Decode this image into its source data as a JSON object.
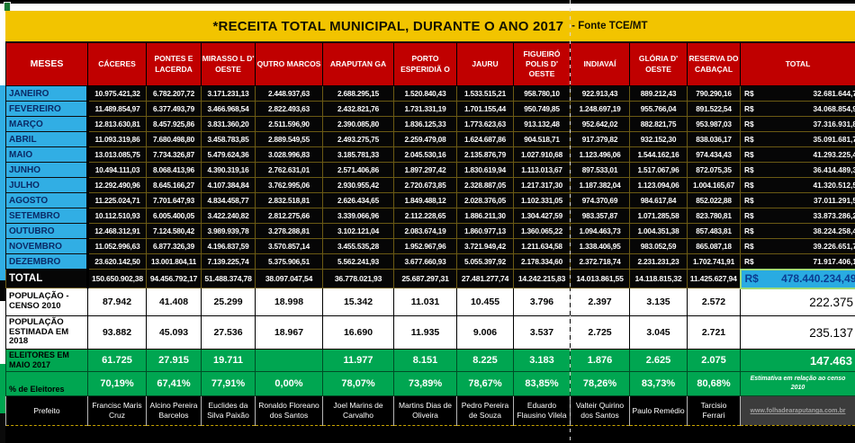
{
  "title": {
    "main": "*RECEITA TOTAL MUNICIPAL, DURANTE O ANO 2017",
    "source": "- Fonte TCE/MT"
  },
  "currency_prefix": "R$",
  "columns": [
    "MESES",
    "CÁCERES",
    "PONTES E LACERDA",
    "MIRASSO L D' OESTE",
    "QUTRO MARCOS",
    "ARAPUTAN GA",
    "PORTO ESPERIDIÃ O",
    "JAURU",
    "FIGUEIRÓ POLIS D' OESTE",
    "INDIAVAÍ",
    "GLÓRIA D' OESTE",
    "RESERVA DO CABAÇAL",
    "TOTAL"
  ],
  "month_rows": [
    {
      "label": "JANEIRO",
      "values": [
        "10.975.421,32",
        "6.782.207,72",
        "3.171.231,13",
        "2.448.937,63",
        "2.688.295,15",
        "1.520.840,43",
        "1.533.515,21",
        "958.780,10",
        "922.913,43",
        "889.212,43",
        "790.290,16"
      ],
      "total": "32.681.644,7"
    },
    {
      "label": "FEVEREIRO",
      "values": [
        "11.489.854,97",
        "6.377.493,79",
        "3.466.968,54",
        "2.822.493,63",
        "2.432.821,76",
        "1.731.331,19",
        "1.701.155,44",
        "950.749,85",
        "1.248.697,19",
        "955.766,04",
        "891.522,54"
      ],
      "total": "34.068.854,9"
    },
    {
      "label": "MARÇO",
      "values": [
        "12.813.630,81",
        "8.457.925,86",
        "3.831.360,20",
        "2.511.596,90",
        "2.390.085,80",
        "1.836.125,33",
        "1.773.623,63",
        "913.132,48",
        "952.642,02",
        "882.821,75",
        "953.987,03"
      ],
      "total": "37.316.931,8"
    },
    {
      "label": "ABRIL",
      "values": [
        "11.093.319,86",
        "7.680.498,80",
        "3.458.783,85",
        "2.889.549,55",
        "2.493.275,75",
        "2.259.479,08",
        "1.624.687,86",
        "904.518,71",
        "917.379,82",
        "932.152,30",
        "838.036,17"
      ],
      "total": "35.091.681,7"
    },
    {
      "label": "MAIO",
      "values": [
        "13.013.085,75",
        "7.734.326,87",
        "5.479.624,36",
        "3.028.996,83",
        "3.185.781,33",
        "2.045.530,16",
        "2.135.876,79",
        "1.027.910,68",
        "1.123.496,06",
        "1.544.162,16",
        "974.434,43"
      ],
      "total": "41.293.225,4"
    },
    {
      "label": "JUNHO",
      "values": [
        "10.494.111,03",
        "8.068.413,96",
        "4.390.319,16",
        "2.762.631,01",
        "2.571.406,86",
        "1.897.297,42",
        "1.830.619,94",
        "1.113.013,67",
        "897.533,01",
        "1.517.067,96",
        "872.075,35"
      ],
      "total": "36.414.489,3"
    },
    {
      "label": "JULHO",
      "values": [
        "12.292.490,96",
        "8.645.166,27",
        "4.107.384,84",
        "3.762.995,06",
        "2.930.955,42",
        "2.720.673,85",
        "2.328.887,05",
        "1.217.317,30",
        "1.187.382,04",
        "1.123.094,06",
        "1.004.165,67"
      ],
      "total": "41.320.512,5"
    },
    {
      "label": "AGOSTO",
      "values": [
        "11.225.024,71",
        "7.701.647,93",
        "4.834.458,77",
        "2.832.518,81",
        "2.626.434,65",
        "1.849.488,12",
        "2.028.376,05",
        "1.102.331,05",
        "974.370,69",
        "984.617,84",
        "852.022,88"
      ],
      "total": "37.011.291,5"
    },
    {
      "label": "SETEMBRO",
      "values": [
        "10.112.510,93",
        "6.005.400,05",
        "3.422.240,82",
        "2.812.275,66",
        "3.339.066,96",
        "2.112.228,65",
        "1.886.211,30",
        "1.304.427,59",
        "983.357,87",
        "1.071.285,58",
        "823.780,81"
      ],
      "total": "33.873.286,2"
    },
    {
      "label": "OUTUBRO",
      "values": [
        "12.468.312,91",
        "7.124.580,42",
        "3.989.939,78",
        "3.278.288,81",
        "3.102.121,04",
        "2.083.674,19",
        "1.860.977,13",
        "1.360.065,22",
        "1.094.463,73",
        "1.004.351,38",
        "857.483,81"
      ],
      "total": "38.224.258,4"
    },
    {
      "label": "NOVEMBRO",
      "values": [
        "11.052.996,63",
        "6.877.326,39",
        "4.196.837,59",
        "3.570.857,14",
        "3.455.535,28",
        "1.952.967,96",
        "3.721.949,42",
        "1.211.634,58",
        "1.338.406,95",
        "983.052,59",
        "865.087,18"
      ],
      "total": "39.226.651,7"
    },
    {
      "label": "DEZEMBRO",
      "values": [
        "23.620.142,50",
        "13.001.804,11",
        "7.139.225,74",
        "5.375.906,51",
        "5.562.241,93",
        "3.677.660,93",
        "5.055.397,92",
        "2.178.334,60",
        "2.372.718,74",
        "2.231.231,23",
        "1.702.741,91"
      ],
      "total": "71.917.406,1"
    }
  ],
  "total_row": {
    "label": "TOTAL",
    "values": [
      "150.650.902,38",
      "94.456.792,17",
      "51.488.374,78",
      "38.097.047,54",
      "36.778.021,93",
      "25.687.297,31",
      "27.481.277,74",
      "14.242.215,83",
      "14.013.861,55",
      "14.118.815,32",
      "11.425.627,94"
    ],
    "total": "478.440.234,49"
  },
  "population_2010": {
    "label": "POPULAÇÃO - CENSO 2010",
    "values": [
      "87.942",
      "41.408",
      "25.299",
      "18.998",
      "15.342",
      "11.031",
      "10.455",
      "3.796",
      "2.397",
      "3.135",
      "2.572"
    ],
    "total": "222.375"
  },
  "population_2018": {
    "label": "POPULAÇÃO ESTIMADA EM 2018",
    "values": [
      "93.882",
      "45.093",
      "27.536",
      "18.967",
      "16.690",
      "11.935",
      "9.006",
      "3.537",
      "2.725",
      "3.045",
      "2.721"
    ],
    "total": "235.137"
  },
  "electors": {
    "label": "ELEITORES EM MAIO 2017",
    "values": [
      "61.725",
      "27.915",
      "19.711",
      "",
      "11.977",
      "8.151",
      "8.225",
      "3.183",
      "1.876",
      "2.625",
      "2.075"
    ],
    "total": "147.463"
  },
  "electors_pct": {
    "label": "% de Eleitores",
    "values": [
      "70,19%",
      "67,41%",
      "77,91%",
      "0,00%",
      "78,07%",
      "73,89%",
      "78,67%",
      "83,85%",
      "78,26%",
      "83,73%",
      "80,68%"
    ],
    "note": "Estimativa em relação ao censo 2010"
  },
  "mayors": {
    "label": "Prefeito",
    "values": [
      "Francisc Maris Cruz",
      "Alcino Pereira Barcelos",
      "Euclides da Silva Paixão",
      "Ronaldo Floreano dos Santos",
      "Joel Marins de Carvalho",
      "Martins Dias de Oliveira",
      "Pedro Pereira de Souza",
      "Eduardo Flausino Vilela",
      "Valteir Quirino dos Santos",
      "Paulo Remédio",
      "Tarcisio Ferrari"
    ],
    "link": "www.folhadearaputanga.com.br"
  },
  "colors": {
    "title_bg": "#F2C400",
    "header_bg": "#C00000",
    "month_label_bg": "#31AEE4",
    "data_bg": "#060606",
    "green_row_bg": "#00A651",
    "grand_total_bg": "#29ABE2",
    "grand_total_text": "#0B3C91"
  }
}
